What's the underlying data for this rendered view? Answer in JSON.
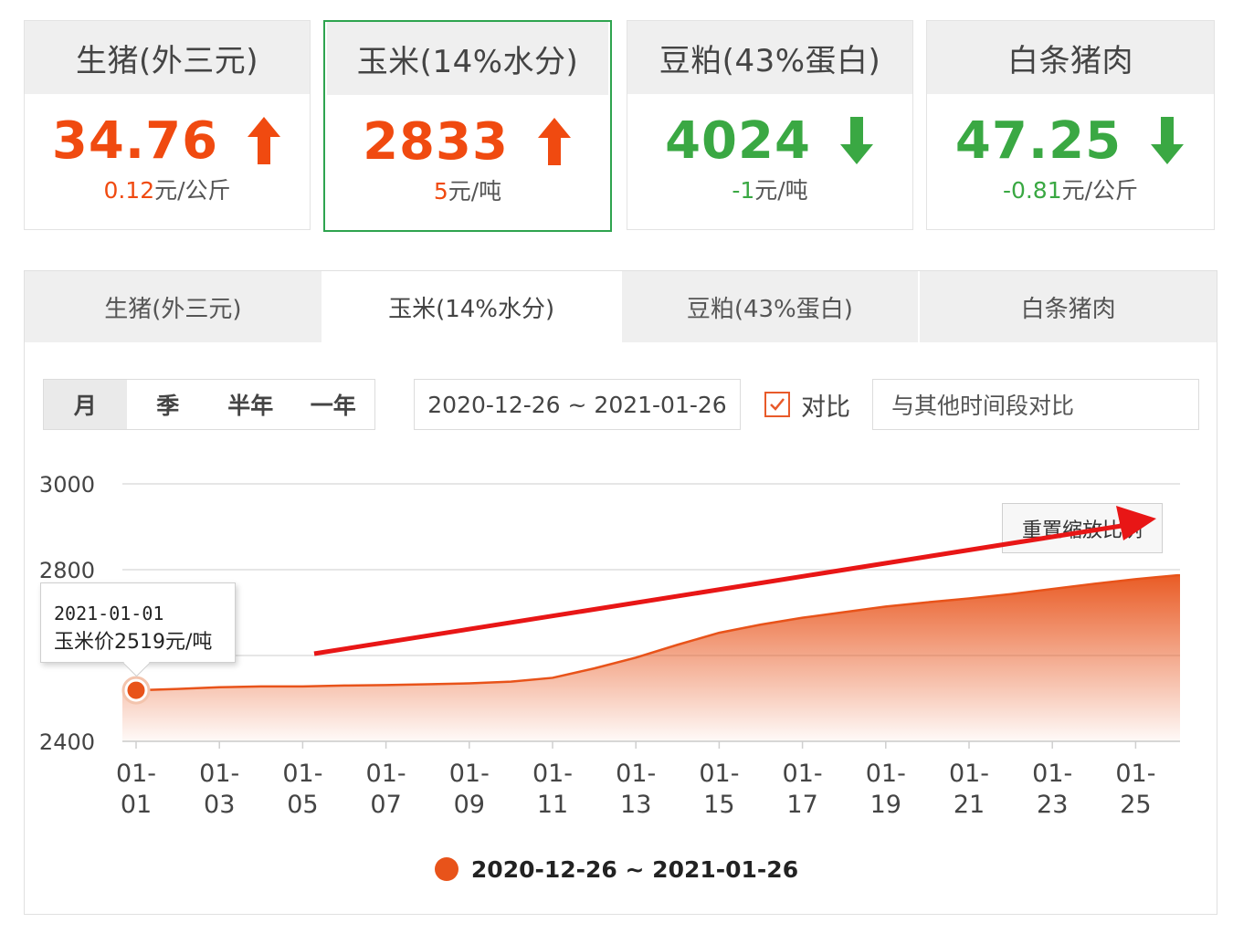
{
  "cards": [
    {
      "name": "生猪(外三元)",
      "price": "34.76",
      "direction": "up",
      "change": "0.12",
      "unit": "元/公斤",
      "selected": false
    },
    {
      "name": "玉米(14%水分)",
      "price": "2833",
      "direction": "up",
      "change": "5",
      "unit": "元/吨",
      "selected": true
    },
    {
      "name": "豆粕(43%蛋白)",
      "price": "4024",
      "direction": "down",
      "change": "-1",
      "unit": "元/吨",
      "selected": false
    },
    {
      "name": "白条猪肉",
      "price": "47.25",
      "direction": "down",
      "change": "-0.81",
      "unit": "元/公斤",
      "selected": false
    }
  ],
  "tabs": [
    "生猪(外三元)",
    "玉米(14%水分)",
    "豆粕(43%蛋白)",
    "白条猪肉"
  ],
  "active_tab": 1,
  "toolbar": {
    "ranges": [
      "月",
      "季",
      "半年",
      "一年"
    ],
    "active_range": 0,
    "date_range": "2020-12-26 ~ 2021-01-26",
    "compare_label": "对比",
    "compare_checked": true,
    "compare_placeholder": "与其他时间段对比"
  },
  "chart": {
    "reset_label": "重置缩放比例",
    "tooltip_date": "2021-01-01",
    "tooltip_value": "玉米价2519元/吨",
    "legend_label": "2020-12-26 ~ 2021-01-26"
  },
  "colors": {
    "up": "#f04a10",
    "down": "#3aa843",
    "series": "#e8531a",
    "annotation_arrow": "#e81616",
    "selected_border": "#2ea44f"
  },
  "chart_data": {
    "type": "area",
    "title": "",
    "xlabel": "",
    "ylabel": "",
    "ylim": [
      2400,
      3000
    ],
    "yticks": [
      3000,
      2800,
      2400
    ],
    "xticks": [
      "01-01",
      "01-03",
      "01-05",
      "01-07",
      "01-09",
      "01-11",
      "01-13",
      "01-15",
      "01-17",
      "01-19",
      "01-21",
      "01-23",
      "01-25"
    ],
    "grid": true,
    "legend_position": "bottom-center",
    "series": [
      {
        "name": "2020-12-26 ~ 2021-01-26",
        "x": [
          "01-01",
          "01-02",
          "01-03",
          "01-04",
          "01-05",
          "01-06",
          "01-07",
          "01-08",
          "01-09",
          "01-10",
          "01-11",
          "01-12",
          "01-13",
          "01-14",
          "01-15",
          "01-16",
          "01-17",
          "01-18",
          "01-19",
          "01-20",
          "01-21",
          "01-22",
          "01-23",
          "01-24",
          "01-25",
          "01-26"
        ],
        "values": [
          2519,
          2522,
          2526,
          2528,
          2528,
          2530,
          2531,
          2533,
          2535,
          2539,
          2548,
          2570,
          2595,
          2625,
          2653,
          2672,
          2688,
          2701,
          2714,
          2724,
          2733,
          2743,
          2755,
          2767,
          2778,
          2787
        ]
      }
    ]
  }
}
